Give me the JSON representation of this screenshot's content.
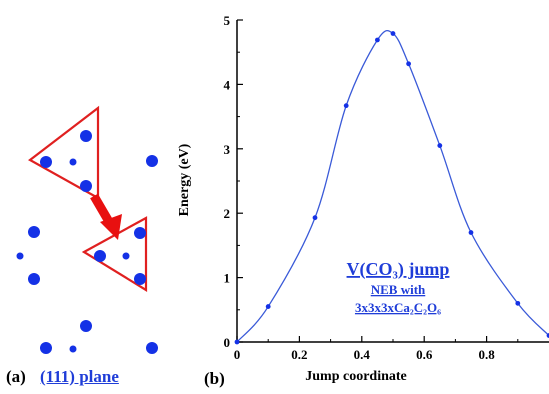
{
  "panel_a": {
    "label": "(a)",
    "plane_label": "(111) plane"
  },
  "panel_b": {
    "label": "(b)"
  },
  "colors": {
    "atoms": "#1431e6",
    "triangle": "#e02020",
    "arrow": "#e81010",
    "curve": "#3a5ad8",
    "annotation": "#1f3dd8"
  },
  "chart_data": {
    "type": "line",
    "xlabel": "Jump coordinate",
    "ylabel": "Energy (eV)",
    "xlim": [
      0,
      1
    ],
    "ylim": [
      0,
      5
    ],
    "xticks": [
      "0",
      "0.2",
      "0.4",
      "0.6",
      "0.8"
    ],
    "xtick_values": [
      0,
      0.2,
      0.4,
      0.6,
      0.8
    ],
    "yticks": [
      "0",
      "1",
      "2",
      "3",
      "4",
      "5"
    ],
    "ytick_values": [
      0,
      1,
      2,
      3,
      4,
      5
    ],
    "grid": false,
    "series": [
      {
        "x": [
          0,
          0.1,
          0.25,
          0.35,
          0.45,
          0.5,
          0.55,
          0.65,
          0.75,
          0.9,
          1.0
        ],
        "y": [
          0,
          0.55,
          1.93,
          3.67,
          4.69,
          4.79,
          4.32,
          3.05,
          1.7,
          0.6,
          0.1
        ]
      }
    ],
    "annotation": {
      "title": "V(CO₃) jump",
      "line1": "NEB with",
      "line2": "3x3x3xCa₂C₂O₆"
    }
  }
}
